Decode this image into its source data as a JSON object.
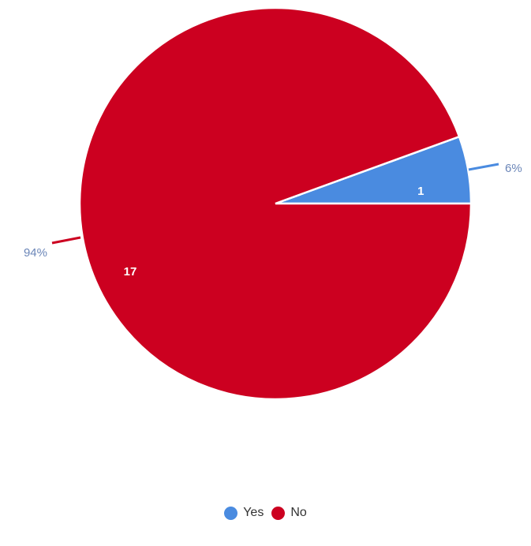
{
  "chart_data": {
    "type": "pie",
    "title": "",
    "categories": [
      "Yes",
      "No"
    ],
    "values": [
      1,
      17
    ],
    "percent_labels": [
      "6%",
      "94%"
    ],
    "colors": [
      "#4a8be0",
      "#cc0020"
    ],
    "label_color": "#6b86b8",
    "legend_position": "bottom"
  },
  "legend": {
    "items": [
      {
        "label": "Yes",
        "color": "#4a8be0"
      },
      {
        "label": "No",
        "color": "#cc0020"
      }
    ]
  }
}
